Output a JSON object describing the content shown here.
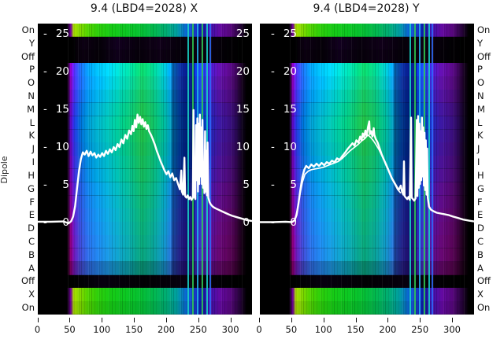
{
  "titles": {
    "left": "9.4 (LBD4=2028) X",
    "right": "9.4 (LBD4=2028) Y"
  },
  "axis": {
    "dipole_label": "Dipole",
    "dipole_items": [
      "On",
      "Y",
      "Off",
      "P",
      "O",
      "N",
      "M",
      "L",
      "K",
      "J",
      "I",
      "H",
      "G",
      "F",
      "E",
      "D",
      "C",
      "B",
      "A",
      "Off",
      "X",
      "On"
    ],
    "x_tick_labels": [
      "0",
      "50",
      "100",
      "150",
      "200",
      "250",
      "300"
    ],
    "inner_tick_dash": "-",
    "inner_tick_values": [
      "25",
      "20",
      "15",
      "10",
      "5",
      "0"
    ]
  },
  "heatmap_rows": [
    {
      "label": "On",
      "style": "bright"
    },
    {
      "label": "Y",
      "style": "dark"
    },
    {
      "label": "Off",
      "style": "dark"
    },
    {
      "label": "P",
      "style": "main"
    },
    {
      "label": "O",
      "style": "main"
    },
    {
      "label": "N",
      "style": "main"
    },
    {
      "label": "M",
      "style": "main"
    },
    {
      "label": "L",
      "style": "main"
    },
    {
      "label": "K",
      "style": "main"
    },
    {
      "label": "J",
      "style": "main"
    },
    {
      "label": "I",
      "style": "main"
    },
    {
      "label": "H",
      "style": "main"
    },
    {
      "label": "G",
      "style": "main"
    },
    {
      "label": "F",
      "style": "main"
    },
    {
      "label": "E",
      "style": "main"
    },
    {
      "label": "D",
      "style": "main"
    },
    {
      "label": "C",
      "style": "main"
    },
    {
      "label": "B",
      "style": "main"
    },
    {
      "label": "A",
      "style": "main"
    },
    {
      "label": "Off",
      "style": "off"
    },
    {
      "label": "X",
      "style": "bright"
    },
    {
      "label": "On",
      "style": "bright"
    }
  ],
  "chart_data": [
    {
      "type": "heatmap+line",
      "title": "9.4 (LBD4=2028) X",
      "x_axis": {
        "range": [
          0,
          333
        ],
        "ticks": [
          0,
          50,
          100,
          150,
          200,
          250,
          300
        ]
      },
      "overlay_y_axis": {
        "ticks": [
          -25,
          -20,
          -15,
          -10,
          -5,
          0
        ],
        "direction": "negative-up"
      },
      "row_axis": {
        "label": "Dipole",
        "categories": [
          "On",
          "Y",
          "Off",
          "P",
          "O",
          "N",
          "M",
          "L",
          "K",
          "J",
          "I",
          "H",
          "G",
          "F",
          "E",
          "D",
          "C",
          "B",
          "A",
          "Off",
          "X",
          "On"
        ]
      },
      "line_points": [
        [
          0,
          -0.1
        ],
        [
          20,
          -0.1
        ],
        [
          40,
          -0.15
        ],
        [
          48,
          0.1
        ],
        [
          52,
          -0.2
        ],
        [
          55,
          -0.8
        ],
        [
          58,
          -2.2
        ],
        [
          61,
          -4.5
        ],
        [
          64,
          -6.8
        ],
        [
          67,
          -8.4
        ],
        [
          70,
          -9.3
        ],
        [
          73,
          -9.0
        ],
        [
          76,
          -9.5
        ],
        [
          79,
          -8.8
        ],
        [
          82,
          -9.4
        ],
        [
          85,
          -8.9
        ],
        [
          88,
          -9.2
        ],
        [
          91,
          -8.6
        ],
        [
          94,
          -9.0
        ],
        [
          97,
          -8.7
        ],
        [
          100,
          -9.2
        ],
        [
          103,
          -8.8
        ],
        [
          106,
          -9.5
        ],
        [
          109,
          -9.1
        ],
        [
          112,
          -9.7
        ],
        [
          115,
          -9.3
        ],
        [
          118,
          -10.0
        ],
        [
          121,
          -9.6
        ],
        [
          124,
          -10.4
        ],
        [
          127,
          -10.0
        ],
        [
          130,
          -11.0
        ],
        [
          133,
          -10.5
        ],
        [
          136,
          -11.6
        ],
        [
          139,
          -11.1
        ],
        [
          142,
          -12.2
        ],
        [
          145,
          -11.7
        ],
        [
          147,
          -12.8
        ],
        [
          149,
          -12.1
        ],
        [
          151,
          -13.6
        ],
        [
          153,
          -12.6
        ],
        [
          155,
          -14.3
        ],
        [
          157,
          -13.2
        ],
        [
          159,
          -14.0
        ],
        [
          161,
          -13.0
        ],
        [
          163,
          -13.7
        ],
        [
          165,
          -12.7
        ],
        [
          167,
          -13.3
        ],
        [
          169,
          -12.4
        ],
        [
          171,
          -12.9
        ],
        [
          173,
          -12.1
        ],
        [
          176,
          -11.6
        ],
        [
          179,
          -11.0
        ],
        [
          182,
          -10.3
        ],
        [
          185,
          -9.5
        ],
        [
          188,
          -8.8
        ],
        [
          191,
          -8.1
        ],
        [
          194,
          -7.5
        ],
        [
          197,
          -6.9
        ],
        [
          200,
          -6.4
        ],
        [
          203,
          -6.8
        ],
        [
          206,
          -6.0
        ],
        [
          209,
          -6.5
        ],
        [
          212,
          -5.6
        ],
        [
          215,
          -5.9
        ],
        [
          218,
          -5.1
        ],
        [
          221,
          -4.4
        ],
        [
          223,
          -6.9
        ],
        [
          224,
          -4.1
        ],
        [
          226,
          -3.7
        ],
        [
          228,
          -8.6
        ],
        [
          229,
          -3.5
        ],
        [
          231,
          -3.3
        ],
        [
          233,
          -3.6
        ],
        [
          235,
          -3.1
        ],
        [
          237,
          -3.4
        ],
        [
          239,
          -3.0
        ],
        [
          241,
          -3.3
        ],
        [
          242,
          -14.9
        ],
        [
          243,
          -3.5
        ],
        [
          245,
          -3.1
        ],
        [
          246,
          -12.9
        ],
        [
          247,
          -5.6
        ],
        [
          248,
          -13.8
        ],
        [
          249,
          -4.1
        ],
        [
          250,
          -13.1
        ],
        [
          251,
          -5.1
        ],
        [
          252,
          -14.3
        ],
        [
          253,
          -6.1
        ],
        [
          254,
          -12.6
        ],
        [
          255,
          -5.1
        ],
        [
          256,
          -13.6
        ],
        [
          257,
          -4.6
        ],
        [
          258,
          -8.0
        ],
        [
          259,
          -3.9
        ],
        [
          260,
          -12.1
        ],
        [
          261,
          -4.1
        ],
        [
          262,
          -9.5
        ],
        [
          263,
          -3.6
        ],
        [
          264,
          -10.6
        ],
        [
          265,
          -3.3
        ],
        [
          267,
          -2.7
        ],
        [
          269,
          -2.4
        ],
        [
          272,
          -2.1
        ],
        [
          276,
          -1.9
        ],
        [
          281,
          -1.7
        ],
        [
          286,
          -1.5
        ],
        [
          291,
          -1.3
        ],
        [
          296,
          -1.1
        ],
        [
          302,
          -0.9
        ],
        [
          310,
          -0.7
        ],
        [
          318,
          -0.5
        ],
        [
          326,
          -0.3
        ],
        [
          333,
          -0.2
        ]
      ],
      "secondary_points": null
    },
    {
      "type": "heatmap+line",
      "title": "9.4 (LBD4=2028) Y",
      "x_axis": {
        "range": [
          0,
          333
        ],
        "ticks": [
          0,
          50,
          100,
          150,
          200,
          250,
          300
        ]
      },
      "overlay_y_axis": {
        "ticks": [
          -25,
          -20,
          -15,
          -10,
          -5,
          0
        ],
        "direction": "negative-up"
      },
      "row_axis": {
        "label": "Dipole",
        "categories": [
          "On",
          "Y",
          "Off",
          "P",
          "O",
          "N",
          "M",
          "L",
          "K",
          "J",
          "I",
          "H",
          "G",
          "F",
          "E",
          "D",
          "C",
          "B",
          "A",
          "Off",
          "X",
          "On"
        ]
      },
      "line_points": [
        [
          0,
          -0.05
        ],
        [
          20,
          -0.05
        ],
        [
          40,
          -0.1
        ],
        [
          50,
          -0.05
        ],
        [
          54,
          -0.3
        ],
        [
          57,
          -1.0
        ],
        [
          60,
          -2.5
        ],
        [
          63,
          -4.4
        ],
        [
          66,
          -6.0
        ],
        [
          69,
          -7.0
        ],
        [
          72,
          -7.5
        ],
        [
          76,
          -7.2
        ],
        [
          80,
          -7.7
        ],
        [
          84,
          -7.4
        ],
        [
          88,
          -7.8
        ],
        [
          92,
          -7.5
        ],
        [
          96,
          -7.9
        ],
        [
          100,
          -7.6
        ],
        [
          104,
          -8.0
        ],
        [
          108,
          -7.8
        ],
        [
          112,
          -8.2
        ],
        [
          116,
          -8.0
        ],
        [
          120,
          -8.5
        ],
        [
          124,
          -8.3
        ],
        [
          128,
          -8.8
        ],
        [
          132,
          -9.2
        ],
        [
          136,
          -9.7
        ],
        [
          140,
          -10.1
        ],
        [
          144,
          -10.5
        ],
        [
          147,
          -10.2
        ],
        [
          150,
          -10.9
        ],
        [
          153,
          -10.6
        ],
        [
          156,
          -11.4
        ],
        [
          158,
          -10.9
        ],
        [
          160,
          -11.8
        ],
        [
          162,
          -11.3
        ],
        [
          164,
          -12.2
        ],
        [
          166,
          -11.5
        ],
        [
          168,
          -12.6
        ],
        [
          170,
          -13.4
        ],
        [
          171,
          -11.7
        ],
        [
          173,
          -12.1
        ],
        [
          175,
          -11.4
        ],
        [
          177,
          -12.5
        ],
        [
          178,
          -11.6
        ],
        [
          180,
          -11.1
        ],
        [
          183,
          -10.6
        ],
        [
          186,
          -9.9
        ],
        [
          189,
          -9.1
        ],
        [
          193,
          -8.3
        ],
        [
          197,
          -7.5
        ],
        [
          201,
          -6.7
        ],
        [
          205,
          -5.9
        ],
        [
          209,
          -5.3
        ],
        [
          213,
          -4.7
        ],
        [
          216,
          -4.3
        ],
        [
          219,
          -4.9
        ],
        [
          221,
          -4.1
        ],
        [
          223,
          -3.7
        ],
        [
          224,
          -8.1
        ],
        [
          225,
          -3.5
        ],
        [
          227,
          -3.3
        ],
        [
          229,
          -3.1
        ],
        [
          231,
          -3.4
        ],
        [
          233,
          -3.0
        ],
        [
          235,
          -13.9
        ],
        [
          236,
          -3.3
        ],
        [
          238,
          -3.1
        ],
        [
          240,
          -2.9
        ],
        [
          242,
          -3.2
        ],
        [
          244,
          -13.6
        ],
        [
          245,
          -3.5
        ],
        [
          246,
          -14.1
        ],
        [
          247,
          -4.6
        ],
        [
          248,
          -13.1
        ],
        [
          249,
          -5.1
        ],
        [
          250,
          -12.1
        ],
        [
          251,
          -5.6
        ],
        [
          252,
          -13.9
        ],
        [
          253,
          -6.1
        ],
        [
          254,
          -12.6
        ],
        [
          255,
          -4.9
        ],
        [
          256,
          -11.9
        ],
        [
          257,
          -4.3
        ],
        [
          258,
          -10.9
        ],
        [
          259,
          -3.7
        ],
        [
          260,
          -9.8
        ],
        [
          261,
          -3.3
        ],
        [
          263,
          -2.1
        ],
        [
          266,
          -1.7
        ],
        [
          270,
          -1.5
        ],
        [
          275,
          -1.3
        ],
        [
          281,
          -1.2
        ],
        [
          287,
          -1.1
        ],
        [
          293,
          -1.0
        ],
        [
          300,
          -0.8
        ],
        [
          308,
          -0.6
        ],
        [
          316,
          -0.4
        ],
        [
          325,
          -0.25
        ],
        [
          333,
          -0.15
        ]
      ],
      "secondary_points": [
        [
          54,
          -0.2
        ],
        [
          58,
          -1.6
        ],
        [
          62,
          -3.6
        ],
        [
          66,
          -5.3
        ],
        [
          70,
          -6.4
        ],
        [
          75,
          -6.8
        ],
        [
          80,
          -7.0
        ],
        [
          86,
          -7.1
        ],
        [
          92,
          -7.2
        ],
        [
          98,
          -7.3
        ],
        [
          104,
          -7.5
        ],
        [
          110,
          -7.7
        ],
        [
          116,
          -7.9
        ],
        [
          122,
          -8.1
        ],
        [
          128,
          -8.5
        ],
        [
          134,
          -9.0
        ],
        [
          140,
          -9.5
        ],
        [
          146,
          -9.9
        ],
        [
          152,
          -10.3
        ],
        [
          158,
          -10.8
        ],
        [
          163,
          -11.1
        ],
        [
          168,
          -11.6
        ],
        [
          172,
          -11.3
        ],
        [
          176,
          -10.9
        ],
        [
          180,
          -10.4
        ],
        [
          185,
          -9.7
        ],
        [
          190,
          -8.8
        ],
        [
          196,
          -7.8
        ],
        [
          202,
          -6.6
        ],
        [
          208,
          -5.4
        ],
        [
          214,
          -4.4
        ],
        [
          219,
          -3.9
        ]
      ]
    }
  ]
}
